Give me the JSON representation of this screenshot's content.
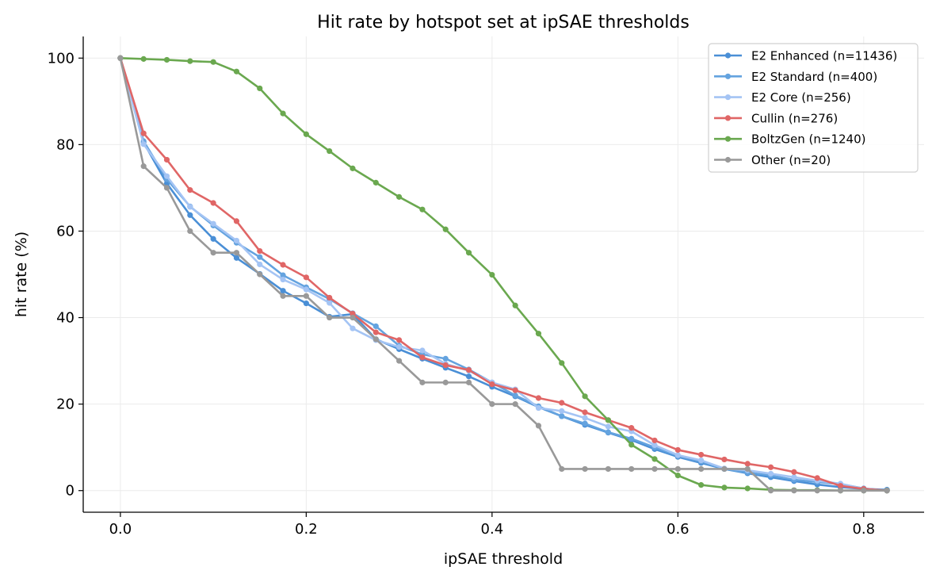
{
  "chart_data": {
    "type": "line",
    "title": "Hit rate by hotspot set at ipSAE thresholds",
    "xlabel": "ipSAE threshold",
    "ylabel": "hit rate (%)",
    "xlim": [
      -0.04,
      0.865
    ],
    "ylim": [
      -5,
      105
    ],
    "xticks": [
      0.0,
      0.2,
      0.4,
      0.6,
      0.8
    ],
    "xtick_labels": [
      "0.0",
      "0.2",
      "0.4",
      "0.6",
      "0.8"
    ],
    "yticks": [
      0,
      20,
      40,
      60,
      80,
      100
    ],
    "ytick_labels": [
      "0",
      "20",
      "40",
      "60",
      "80",
      "100"
    ],
    "grid": true,
    "legend_position": "top-right",
    "x": [
      0.0,
      0.025,
      0.05,
      0.075,
      0.1,
      0.125,
      0.15,
      0.175,
      0.2,
      0.225,
      0.25,
      0.275,
      0.3,
      0.325,
      0.35,
      0.375,
      0.4,
      0.425,
      0.45,
      0.475,
      0.5,
      0.525,
      0.55,
      0.575,
      0.6,
      0.625,
      0.65,
      0.675,
      0.7,
      0.725,
      0.75,
      0.775,
      0.8,
      0.825
    ],
    "series": [
      {
        "name": "E2 Enhanced (n=11436)",
        "color": "#4a8fd6",
        "values": [
          100,
          80.5,
          71.0,
          63.7,
          58.2,
          53.8,
          50.1,
          46.2,
          43.3,
          40.2,
          40.8,
          35.0,
          32.7,
          30.5,
          28.4,
          26.4,
          24.0,
          21.8,
          19.3,
          17.2,
          15.2,
          13.4,
          11.7,
          9.6,
          7.8,
          6.4,
          5.0,
          4.0,
          3.1,
          2.2,
          1.4,
          0.8,
          0.4,
          0.2
        ]
      },
      {
        "name": "E2 Standard (n=400)",
        "color": "#64a3df",
        "values": [
          100,
          80.8,
          72.0,
          65.7,
          61.3,
          57.3,
          54.0,
          49.8,
          47.0,
          44.3,
          41.0,
          38.0,
          33.5,
          31.5,
          30.5,
          28.0,
          25.0,
          22.0,
          19.5,
          17.2,
          15.5,
          13.5,
          12.0,
          10.0,
          8.0,
          6.7,
          5.0,
          4.2,
          3.5,
          2.5,
          2.0,
          1.5,
          0.5,
          0.0
        ]
      },
      {
        "name": "E2 Core (n=256)",
        "color": "#a4c4f4",
        "values": [
          100,
          80.1,
          72.7,
          65.6,
          61.7,
          57.8,
          52.3,
          48.8,
          46.5,
          43.4,
          37.5,
          34.8,
          33.2,
          32.4,
          29.3,
          27.7,
          25.0,
          23.4,
          19.1,
          18.4,
          16.8,
          14.8,
          13.7,
          10.5,
          8.2,
          7.0,
          5.1,
          4.7,
          3.9,
          3.1,
          2.3,
          1.6,
          0.4,
          0.0
        ]
      },
      {
        "name": "Cullin (n=276)",
        "color": "#e06666",
        "values": [
          100,
          82.6,
          76.5,
          69.5,
          66.5,
          62.3,
          55.4,
          52.2,
          49.3,
          44.6,
          40.9,
          36.6,
          34.8,
          30.8,
          29.0,
          27.9,
          24.6,
          23.2,
          21.4,
          20.3,
          18.1,
          16.3,
          14.5,
          11.6,
          9.4,
          8.3,
          7.2,
          6.2,
          5.4,
          4.3,
          2.9,
          1.1,
          0.4,
          0.0
        ]
      },
      {
        "name": "BoltzGen (n=1240)",
        "color": "#6aa84f",
        "values": [
          100,
          99.8,
          99.6,
          99.3,
          99.1,
          96.9,
          93.0,
          87.2,
          82.4,
          78.5,
          74.5,
          71.2,
          67.9,
          65.0,
          60.4,
          55.0,
          49.9,
          42.8,
          36.3,
          29.5,
          21.8,
          16.3,
          10.6,
          7.3,
          3.5,
          1.3,
          0.7,
          0.5,
          0.2,
          0.1,
          0.1,
          0.0,
          0.0,
          0.0
        ]
      },
      {
        "name": "Other (n=20)",
        "color": "#999999",
        "values": [
          100,
          75,
          70,
          60,
          55,
          55,
          50,
          45,
          45,
          40,
          40,
          35,
          30,
          25,
          25,
          25,
          20,
          20,
          15,
          5,
          5,
          5,
          5,
          5,
          5,
          5,
          5,
          5,
          0,
          0,
          0,
          0,
          0,
          0
        ]
      }
    ]
  }
}
